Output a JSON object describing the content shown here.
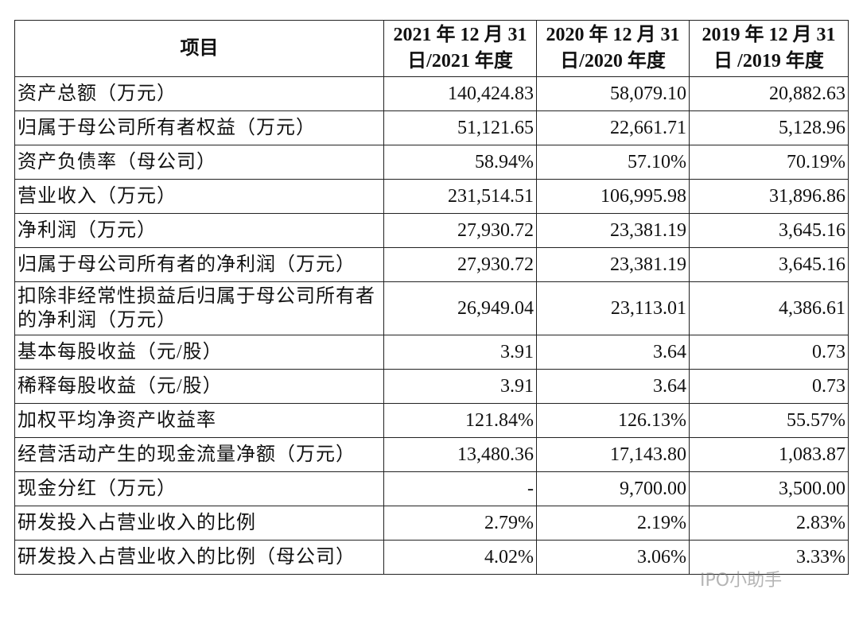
{
  "table": {
    "header": [
      "项目",
      "2021 年 12 月 31 日/2021 年度",
      "2020 年 12 月 31 日/2020 年度",
      "2019 年 12 月 31 日 /2019 年度"
    ],
    "rows": [
      [
        "资产总额（万元）",
        "140,424.83",
        "58,079.10",
        "20,882.63"
      ],
      [
        "归属于母公司所有者权益（万元）",
        "51,121.65",
        "22,661.71",
        "5,128.96"
      ],
      [
        "资产负债率（母公司）",
        "58.94%",
        "57.10%",
        "70.19%"
      ],
      [
        "营业收入（万元）",
        "231,514.51",
        "106,995.98",
        "31,896.86"
      ],
      [
        "净利润（万元）",
        "27,930.72",
        "23,381.19",
        "3,645.16"
      ],
      [
        "归属于母公司所有者的净利润（万元）",
        "27,930.72",
        "23,381.19",
        "3,645.16"
      ],
      [
        "扣除非经常性损益后归属于母公司所有者的净利润（万元）",
        "26,949.04",
        "23,113.01",
        "4,386.61"
      ],
      [
        "基本每股收益（元/股）",
        "3.91",
        "3.64",
        "0.73"
      ],
      [
        "稀释每股收益（元/股）",
        "3.91",
        "3.64",
        "0.73"
      ],
      [
        "加权平均净资产收益率",
        "121.84%",
        "126.13%",
        "55.57%"
      ],
      [
        "经营活动产生的现金流量净额（万元）",
        "13,480.36",
        "17,143.80",
        "1,083.87"
      ],
      [
        "现金分红（万元）",
        "-",
        "9,700.00",
        "3,500.00"
      ],
      [
        "研发投入占营业收入的比例",
        "2.79%",
        "2.19%",
        "2.83%"
      ],
      [
        "研发投入占营业收入的比例（母公司）",
        "4.02%",
        "3.06%",
        "3.33%"
      ]
    ]
  },
  "watermark": "IPO小助手"
}
